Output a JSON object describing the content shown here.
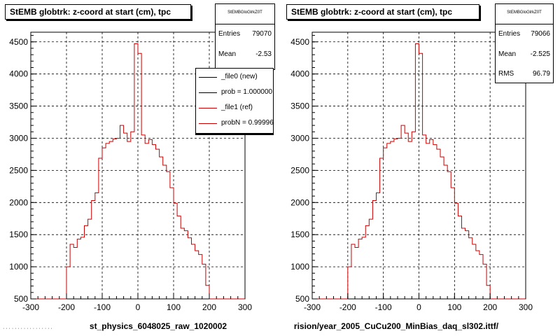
{
  "chart_data": [
    {
      "type": "histogram",
      "title": "StEMB globtrk: z-coord at start (cm), tpc",
      "xlabel": "st_physics_6048025_raw_1020002",
      "ylabel": "",
      "xlim": [
        -300,
        300
      ],
      "ylim": [
        500,
        4650
      ],
      "x_ticks": [
        -300,
        -200,
        -100,
        0,
        100,
        200,
        300
      ],
      "y_ticks": [
        500,
        1000,
        1500,
        2000,
        2500,
        3000,
        3500,
        4000,
        4500
      ],
      "grid": true,
      "stats": {
        "name": "StEMBGloGlrkZ0T",
        "entries_label": "Entries",
        "entries": "79070",
        "mean_label": "Mean",
        "mean": "-2.53"
      },
      "legend": [
        {
          "label": "_file0 (new)",
          "color": "#000000"
        },
        {
          "label": "prob = 1.000000",
          "color": "#000000"
        },
        {
          "label": "_file1 (ref)",
          "color": "#cc0000"
        },
        {
          "label": "probN = 0.99996",
          "color": "#cc0000"
        }
      ]
    },
    {
      "type": "histogram",
      "title": "StEMB globtrk: z-coord at start (cm), tpc",
      "xlabel": "rision/year_2005_CuCu200_MinBias_daq_sl302.ittf/",
      "ylabel": "",
      "xlim": [
        -300,
        300
      ],
      "ylim": [
        500,
        4650
      ],
      "x_ticks": [
        -300,
        -200,
        -100,
        0,
        100,
        200,
        300
      ],
      "y_ticks": [
        500,
        1000,
        1500,
        2000,
        2500,
        3000,
        3500,
        4000,
        4500
      ],
      "grid": true,
      "stats": {
        "name": "StEMBGloGlrkZ0T",
        "entries_label": "Entries",
        "entries": "79066",
        "mean_label": "Mean",
        "mean": "-2.525",
        "rms_label": "RMS",
        "rms": "96.79"
      }
    }
  ],
  "histogram": {
    "bin_edges": [
      -300,
      -290,
      -280,
      -270,
      -260,
      -250,
      -240,
      -230,
      -220,
      -210,
      -200,
      -190,
      -180,
      -170,
      -160,
      -150,
      -140,
      -130,
      -120,
      -110,
      -100,
      -90,
      -80,
      -70,
      -60,
      -50,
      -40,
      -30,
      -20,
      -10,
      0,
      10,
      20,
      30,
      40,
      50,
      60,
      70,
      80,
      90,
      100,
      110,
      120,
      130,
      140,
      150,
      160,
      170,
      180,
      190,
      200,
      210,
      220,
      230,
      240,
      250,
      260,
      270,
      280,
      290,
      300
    ],
    "counts": [
      0,
      0,
      0,
      0,
      0,
      0,
      0,
      0,
      0,
      0,
      1000,
      1350,
      1300,
      1430,
      1460,
      1640,
      1740,
      2030,
      2150,
      2690,
      2850,
      2920,
      2950,
      2990,
      3000,
      3200,
      3080,
      2950,
      3100,
      4470,
      4320,
      3050,
      2920,
      2980,
      2900,
      2830,
      2710,
      2580,
      2480,
      2230,
      1990,
      1790,
      1600,
      1560,
      1450,
      1350,
      1250,
      1190,
      1040,
      710,
      0,
      0,
      0,
      0,
      0,
      0,
      0,
      0,
      0,
      0
    ],
    "series_color": "#cc0000"
  },
  "footnote": "· · · · · · · · · · · · · · · · ·"
}
